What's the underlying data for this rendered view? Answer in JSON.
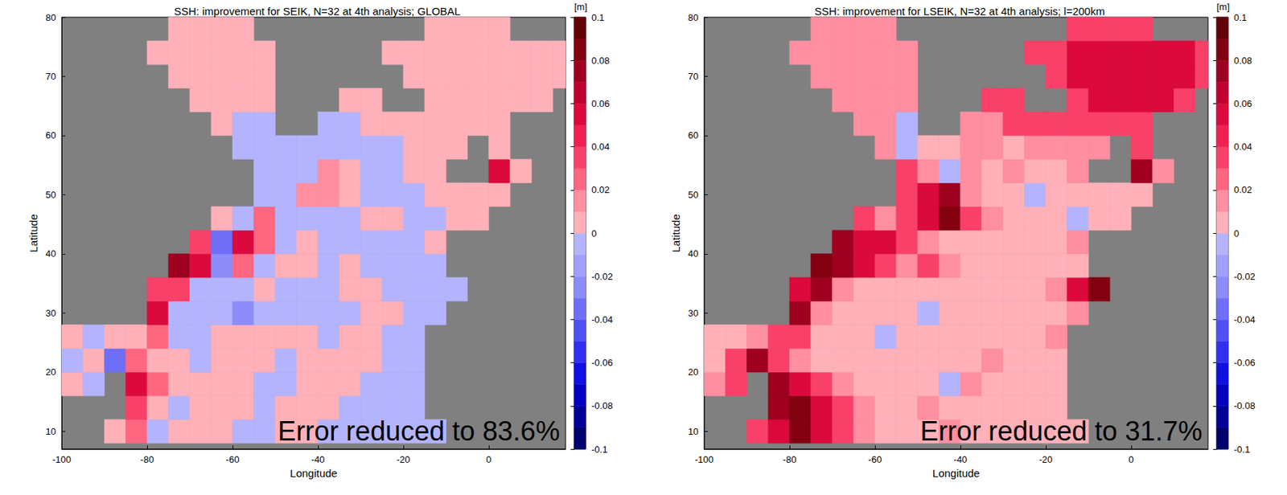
{
  "chart_data": [
    {
      "type": "heatmap",
      "title": "SSH: improvement for SEIK, N=32 at 4th analysis; GLOBAL",
      "annotation": "Error reduced to 83.6%",
      "x_label": "Longitude",
      "y_label": "Latitude",
      "x": [
        -97.5,
        -92.5,
        -87.5,
        -82.5,
        -77.5,
        -72.5,
        -67.5,
        -62.5,
        -57.5,
        -52.5,
        -47.5,
        -42.5,
        -37.5,
        -32.5,
        -27.5,
        -22.5,
        -17.5,
        -12.5,
        -7.5,
        -2.5,
        2.5,
        7.5,
        12.5,
        17.5
      ],
      "y": [
        10,
        14,
        18,
        22,
        26,
        30,
        34,
        38,
        42,
        46,
        50,
        54,
        58,
        62,
        66,
        70,
        74,
        78
      ],
      "cells": [
        [
          null,
          null,
          0.005,
          0.025,
          -0.005,
          0.005,
          0.005,
          0.005,
          -0.005,
          -0.005,
          0.005,
          0.005,
          -0.005,
          -0.005,
          -0.005,
          -0.005,
          -0.005,
          -0.005,
          null,
          null,
          null,
          null,
          null,
          null
        ],
        [
          null,
          null,
          null,
          0.035,
          0.005,
          -0.005,
          0.005,
          0.005,
          0.005,
          -0.005,
          0.005,
          0.005,
          0.005,
          -0.005,
          -0.005,
          -0.005,
          -0.005,
          null,
          null,
          null,
          null,
          null,
          null,
          null
        ],
        [
          0.005,
          -0.005,
          null,
          0.055,
          0.025,
          0.005,
          0.005,
          0.005,
          0.005,
          -0.005,
          -0.005,
          0.005,
          0.005,
          0.005,
          -0.005,
          -0.005,
          -0.005,
          null,
          null,
          null,
          null,
          null,
          null,
          null
        ],
        [
          -0.005,
          0.005,
          -0.035,
          0.025,
          0.005,
          0.005,
          -0.005,
          0.005,
          0.005,
          0.005,
          -0.005,
          0.005,
          0.005,
          0.005,
          0.005,
          -0.005,
          -0.005,
          null,
          null,
          null,
          null,
          null,
          null,
          null
        ],
        [
          0.005,
          -0.005,
          0.005,
          0.005,
          0.025,
          -0.005,
          -0.005,
          0.005,
          0.005,
          0.005,
          0.005,
          0.005,
          -0.005,
          0.005,
          0.005,
          -0.005,
          -0.005,
          null,
          null,
          null,
          null,
          null,
          null,
          null
        ],
        [
          null,
          null,
          null,
          null,
          0.055,
          -0.005,
          -0.005,
          -0.005,
          -0.025,
          -0.005,
          -0.005,
          -0.005,
          -0.005,
          -0.005,
          0.005,
          0.005,
          -0.005,
          -0.005,
          null,
          null,
          null,
          null,
          null,
          null
        ],
        [
          null,
          null,
          null,
          null,
          0.035,
          0.035,
          -0.005,
          -0.005,
          -0.005,
          0.005,
          -0.005,
          -0.005,
          -0.005,
          0.005,
          0.005,
          -0.005,
          -0.005,
          -0.005,
          -0.005,
          null,
          null,
          null,
          null,
          null
        ],
        [
          null,
          null,
          null,
          null,
          null,
          0.075,
          0.055,
          -0.025,
          0.025,
          -0.005,
          0.005,
          0.005,
          -0.005,
          0.005,
          -0.005,
          -0.005,
          -0.005,
          -0.005,
          null,
          null,
          null,
          null,
          null,
          null
        ],
        [
          null,
          null,
          null,
          null,
          null,
          null,
          0.035,
          -0.035,
          0.055,
          0.025,
          -0.005,
          0.005,
          -0.005,
          -0.005,
          -0.005,
          -0.005,
          -0.005,
          0.005,
          null,
          null,
          null,
          null,
          null,
          null
        ],
        [
          null,
          null,
          null,
          null,
          null,
          null,
          null,
          0.005,
          -0.005,
          0.025,
          -0.005,
          -0.005,
          -0.005,
          -0.005,
          0.005,
          0.005,
          -0.005,
          -0.005,
          0.005,
          0.005,
          null,
          null,
          null,
          null
        ],
        [
          null,
          null,
          null,
          null,
          null,
          null,
          null,
          null,
          null,
          -0.005,
          -0.005,
          0.015,
          0.015,
          0.005,
          -0.005,
          -0.005,
          -0.005,
          0.005,
          0.005,
          0.005,
          0.005,
          null,
          null,
          null
        ],
        [
          null,
          null,
          null,
          null,
          null,
          null,
          null,
          null,
          null,
          -0.005,
          -0.005,
          -0.005,
          0.015,
          0.005,
          -0.005,
          -0.005,
          0.005,
          0.005,
          null,
          null,
          0.055,
          0.005,
          null,
          null
        ],
        [
          null,
          null,
          null,
          null,
          null,
          null,
          null,
          null,
          -0.005,
          -0.005,
          -0.005,
          -0.005,
          -0.005,
          -0.005,
          -0.005,
          -0.005,
          0.005,
          0.005,
          0.005,
          null,
          0.005,
          null,
          null,
          null
        ],
        [
          null,
          null,
          null,
          null,
          null,
          null,
          null,
          0.005,
          -0.005,
          -0.005,
          null,
          null,
          -0.005,
          -0.005,
          0.005,
          0.005,
          0.005,
          0.005,
          0.005,
          0.005,
          0.005,
          null,
          null,
          null
        ],
        [
          null,
          null,
          null,
          null,
          null,
          null,
          0.005,
          0.005,
          0.005,
          0.005,
          null,
          null,
          null,
          0.005,
          0.005,
          null,
          null,
          0.005,
          0.005,
          0.005,
          0.005,
          0.005,
          0.005,
          null
        ],
        [
          null,
          null,
          null,
          null,
          null,
          0.005,
          0.005,
          0.005,
          0.005,
          0.005,
          null,
          null,
          null,
          null,
          null,
          null,
          0.005,
          0.005,
          0.005,
          0.005,
          0.005,
          0.005,
          0.005,
          0.005
        ],
        [
          null,
          null,
          null,
          null,
          0.005,
          0.005,
          0.005,
          0.005,
          0.005,
          0.005,
          null,
          null,
          null,
          null,
          null,
          0.005,
          0.005,
          0.005,
          0.005,
          0.005,
          0.005,
          0.005,
          0.005,
          0.005
        ],
        [
          null,
          null,
          null,
          null,
          null,
          0.005,
          0.005,
          0.005,
          0.005,
          null,
          null,
          null,
          null,
          null,
          null,
          null,
          null,
          0.005,
          0.005,
          0.005,
          0.005,
          null,
          null,
          null
        ]
      ],
      "xlim": [
        -100,
        18
      ],
      "xticks": [
        -100,
        -80,
        -60,
        -40,
        -20,
        0
      ],
      "ylim": [
        7,
        80
      ],
      "yticks": [
        10,
        20,
        30,
        40,
        50,
        60,
        70,
        80
      ],
      "colorbar": {
        "label": "[m]",
        "range": [
          -0.1,
          0.1
        ],
        "ticks": [
          0.1,
          0.08,
          0.06,
          0.04,
          0.02,
          0,
          -0.02,
          -0.04,
          -0.06,
          -0.08,
          -0.1
        ],
        "levels": [
          -0.1,
          -0.09,
          -0.08,
          -0.07,
          -0.06,
          -0.05,
          -0.04,
          -0.03,
          -0.02,
          -0.01,
          0,
          0.01,
          0.02,
          0.03,
          0.04,
          0.05,
          0.06,
          0.07,
          0.08,
          0.09,
          0.1
        ],
        "colors": [
          "#00006e",
          "#000096",
          "#0000be",
          "#1010e0",
          "#3030f0",
          "#5050f5",
          "#6e6ef8",
          "#8c8cfa",
          "#a0a0fc",
          "#b4b4fe",
          "#ffb0b8",
          "#ff8ea0",
          "#ff6680",
          "#f94068",
          "#f02050",
          "#dc0a3c",
          "#c00030",
          "#a00020",
          "#820010",
          "#640008"
        ]
      }
    },
    {
      "type": "heatmap",
      "title": "SSH: improvement for LSEIK, N=32 at 4th analysis; l=200km",
      "annotation": "Error reduced to 31.7%",
      "x_label": "Longitude",
      "y_label": "Latitude",
      "x": [
        -97.5,
        -92.5,
        -87.5,
        -82.5,
        -77.5,
        -72.5,
        -67.5,
        -62.5,
        -57.5,
        -52.5,
        -47.5,
        -42.5,
        -37.5,
        -32.5,
        -27.5,
        -22.5,
        -17.5,
        -12.5,
        -7.5,
        -2.5,
        2.5,
        7.5,
        12.5,
        17.5
      ],
      "y": [
        10,
        14,
        18,
        22,
        26,
        30,
        34,
        38,
        42,
        46,
        50,
        54,
        58,
        62,
        66,
        70,
        74,
        78
      ],
      "cells": [
        [
          null,
          null,
          0.035,
          0.055,
          0.085,
          0.055,
          0.035,
          0.015,
          0.005,
          0.005,
          0.005,
          0.015,
          0.005,
          0.005,
          0.005,
          0.005,
          0.005,
          0.005,
          null,
          null,
          null,
          null,
          null,
          null
        ],
        [
          null,
          null,
          null,
          0.075,
          0.085,
          0.055,
          0.035,
          0.015,
          0.005,
          0.005,
          0.015,
          0.005,
          0.005,
          0.005,
          0.005,
          0.005,
          0.005,
          null,
          null,
          null,
          null,
          null,
          null,
          null
        ],
        [
          0.015,
          0.035,
          null,
          0.075,
          0.055,
          0.035,
          0.015,
          0.005,
          0.005,
          0.005,
          0.005,
          -0.005,
          0.015,
          0.005,
          0.005,
          0.005,
          0.005,
          null,
          null,
          null,
          null,
          null,
          null,
          null
        ],
        [
          0.005,
          0.035,
          0.075,
          0.035,
          0.015,
          0.005,
          0.005,
          0.005,
          0.005,
          0.005,
          0.005,
          0.005,
          0.005,
          0.015,
          0.005,
          0.005,
          0.005,
          null,
          null,
          null,
          null,
          null,
          null,
          null
        ],
        [
          0.005,
          0.005,
          0.015,
          0.035,
          0.035,
          0.005,
          0.005,
          0.005,
          -0.005,
          0.005,
          0.005,
          0.005,
          0.005,
          0.005,
          0.005,
          0.005,
          0.015,
          null,
          null,
          null,
          null,
          null,
          null,
          null
        ],
        [
          null,
          null,
          null,
          null,
          0.075,
          0.015,
          0.005,
          0.005,
          0.005,
          0.005,
          -0.005,
          0.005,
          0.005,
          0.005,
          0.005,
          0.005,
          0.005,
          0.015,
          null,
          null,
          null,
          null,
          null,
          null
        ],
        [
          null,
          null,
          null,
          null,
          0.055,
          0.075,
          0.015,
          0.005,
          0.005,
          0.005,
          0.005,
          0.005,
          0.005,
          0.005,
          0.005,
          0.005,
          0.015,
          0.055,
          0.085,
          null,
          null,
          null,
          null,
          null
        ],
        [
          null,
          null,
          null,
          null,
          null,
          0.085,
          0.075,
          0.055,
          0.035,
          0.015,
          0.035,
          0.015,
          0.005,
          0.005,
          0.005,
          0.005,
          0.005,
          0.005,
          null,
          null,
          null,
          null,
          null,
          null
        ],
        [
          null,
          null,
          null,
          null,
          null,
          null,
          0.075,
          0.055,
          0.055,
          0.035,
          0.015,
          0.005,
          0.005,
          0.005,
          0.005,
          0.005,
          0.005,
          0.015,
          null,
          null,
          null,
          null,
          null,
          null
        ],
        [
          null,
          null,
          null,
          null,
          null,
          null,
          null,
          0.035,
          0.015,
          0.035,
          0.055,
          0.085,
          0.035,
          0.015,
          0.005,
          0.005,
          0.005,
          -0.005,
          0.005,
          0.005,
          null,
          null,
          null,
          null
        ],
        [
          null,
          null,
          null,
          null,
          null,
          null,
          null,
          null,
          null,
          0.035,
          0.055,
          0.075,
          0.015,
          0.005,
          0.005,
          -0.005,
          0.005,
          0.005,
          0.005,
          0.005,
          0.005,
          null,
          null,
          null
        ],
        [
          null,
          null,
          null,
          null,
          null,
          null,
          null,
          null,
          null,
          0.035,
          0.015,
          -0.005,
          0.015,
          0.005,
          0.015,
          0.005,
          0.005,
          0.015,
          null,
          null,
          0.075,
          0.015,
          null,
          null
        ],
        [
          null,
          null,
          null,
          null,
          null,
          null,
          null,
          null,
          0.015,
          -0.005,
          0.005,
          0.005,
          0.015,
          0.015,
          0.005,
          0.015,
          0.015,
          0.015,
          0.015,
          null,
          0.035,
          null,
          null,
          null
        ],
        [
          null,
          null,
          null,
          null,
          null,
          null,
          null,
          0.015,
          0.015,
          -0.005,
          null,
          null,
          0.015,
          0.015,
          0.035,
          0.035,
          0.035,
          0.035,
          0.035,
          0.035,
          0.035,
          null,
          null,
          null
        ],
        [
          null,
          null,
          null,
          null,
          null,
          null,
          0.015,
          0.015,
          0.015,
          0.015,
          null,
          null,
          null,
          0.035,
          0.035,
          null,
          null,
          0.035,
          0.055,
          0.055,
          0.055,
          0.055,
          0.035,
          null
        ],
        [
          null,
          null,
          null,
          null,
          null,
          0.015,
          0.015,
          0.015,
          0.015,
          0.015,
          null,
          null,
          null,
          null,
          null,
          null,
          0.035,
          0.055,
          0.055,
          0.055,
          0.055,
          0.055,
          0.055,
          0.035
        ],
        [
          null,
          null,
          null,
          null,
          0.015,
          0.015,
          0.015,
          0.015,
          0.015,
          0.015,
          null,
          null,
          null,
          null,
          null,
          0.035,
          0.035,
          0.055,
          0.055,
          0.055,
          0.055,
          0.055,
          0.055,
          0.035
        ],
        [
          null,
          null,
          null,
          null,
          null,
          0.015,
          0.015,
          0.015,
          0.015,
          null,
          null,
          null,
          null,
          null,
          null,
          null,
          null,
          0.035,
          0.035,
          0.035,
          0.035,
          null,
          null,
          null
        ]
      ],
      "xlim": [
        -100,
        18
      ],
      "xticks": [
        -100,
        -80,
        -60,
        -40,
        -20,
        0
      ],
      "ylim": [
        7,
        80
      ],
      "yticks": [
        10,
        20,
        30,
        40,
        50,
        60,
        70,
        80
      ],
      "colorbar": {
        "label": "[m]",
        "range": [
          -0.1,
          0.1
        ],
        "ticks": [
          0.1,
          0.08,
          0.06,
          0.04,
          0.02,
          0,
          -0.02,
          -0.04,
          -0.06,
          -0.08,
          -0.1
        ],
        "levels": [
          -0.1,
          -0.09,
          -0.08,
          -0.07,
          -0.06,
          -0.05,
          -0.04,
          -0.03,
          -0.02,
          -0.01,
          0,
          0.01,
          0.02,
          0.03,
          0.04,
          0.05,
          0.06,
          0.07,
          0.08,
          0.09,
          0.1
        ],
        "colors": [
          "#00006e",
          "#000096",
          "#0000be",
          "#1010e0",
          "#3030f0",
          "#5050f5",
          "#6e6ef8",
          "#8c8cfa",
          "#a0a0fc",
          "#b4b4fe",
          "#ffb0b8",
          "#ff8ea0",
          "#ff6680",
          "#f94068",
          "#f02050",
          "#dc0a3c",
          "#c00030",
          "#a00020",
          "#820010",
          "#640008"
        ]
      }
    }
  ]
}
